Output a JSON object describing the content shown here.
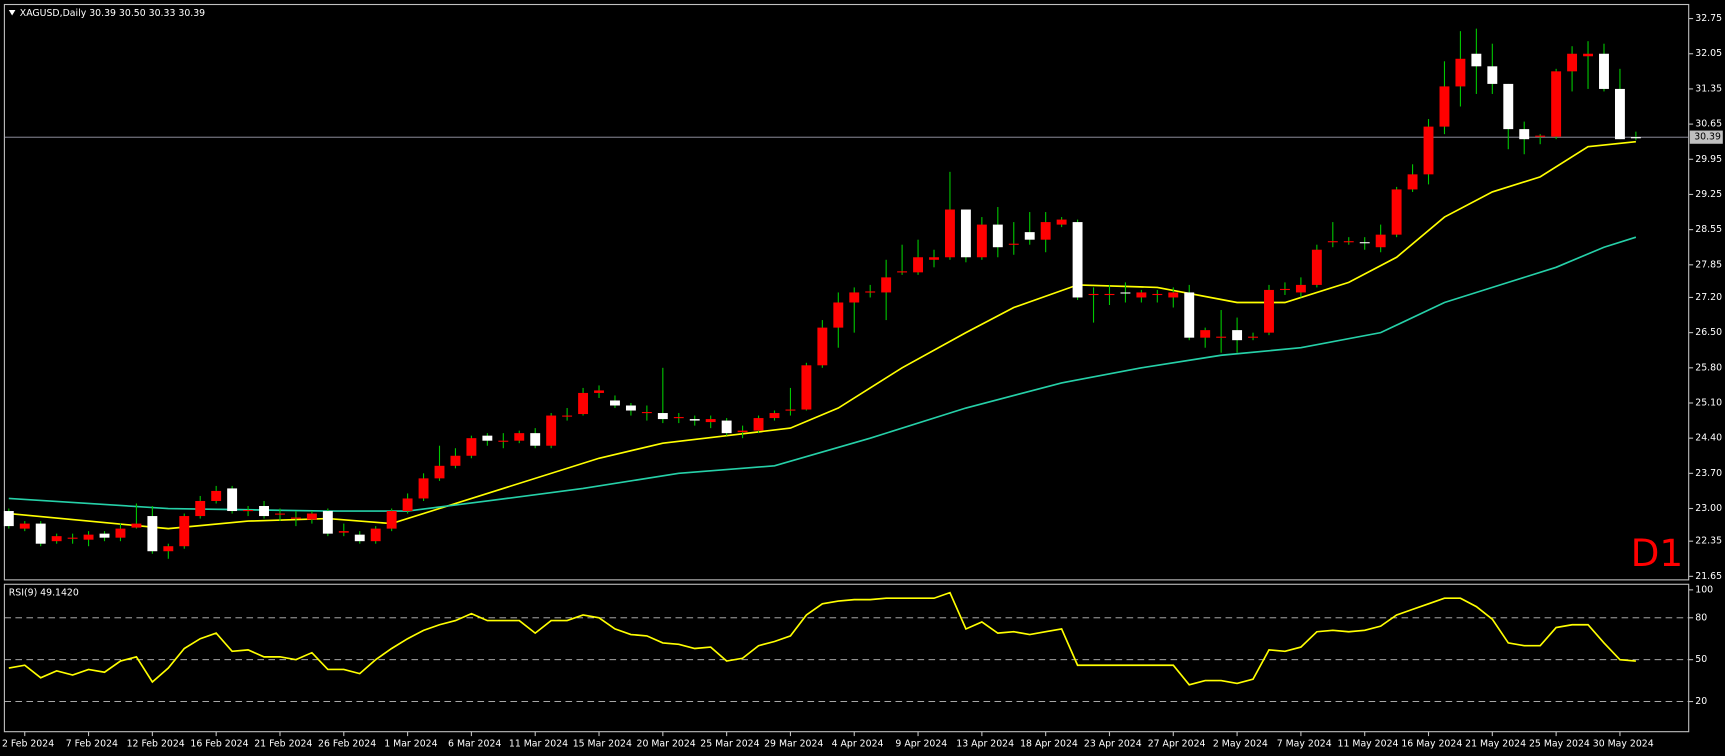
{
  "chart_data": [
    {
      "type": "candlestick",
      "title": "XAGUSD,Daily  30.39 30.50 30.33 30.39",
      "label": "D1",
      "categories": [
        null,
        "2 Feb 2024",
        null,
        null,
        null,
        "7 Feb 2024",
        null,
        null,
        null,
        "12 Feb 2024",
        null,
        null,
        null,
        "16 Feb 2024",
        null,
        null,
        null,
        "21 Feb 2024",
        null,
        null,
        null,
        "26 Feb 2024",
        null,
        null,
        null,
        "1 Mar 2024",
        null,
        null,
        null,
        "6 Mar 2024",
        null,
        null,
        null,
        "11 Mar 2024",
        null,
        null,
        null,
        "15 Mar 2024",
        null,
        null,
        null,
        "20 Mar 2024",
        null,
        null,
        null,
        "25 Mar 2024",
        null,
        null,
        null,
        "29 Mar 2024",
        null,
        null,
        null,
        "4 Apr 2024",
        null,
        null,
        null,
        "9 Apr 2024",
        null,
        null,
        null,
        "13 Apr 2024",
        null,
        null,
        null,
        "18 Apr 2024",
        null,
        null,
        null,
        "23 Apr 2024",
        null,
        null,
        null,
        "27 Apr 2024",
        null,
        null,
        null,
        "2 May 2024",
        null,
        null,
        null,
        "7 May 2024",
        null,
        null,
        null,
        "11 May 2024",
        null,
        null,
        null,
        "16 May 2024",
        null,
        null,
        null,
        "21 May 2024",
        null,
        null,
        null,
        "25 May 2024",
        null,
        null,
        null,
        "30 May 2024",
        null
      ],
      "open": [
        22.95,
        22.6,
        22.7,
        22.35,
        22.4,
        22.38,
        22.5,
        22.42,
        22.62,
        22.85,
        22.15,
        22.25,
        22.85,
        23.15,
        23.4,
        22.95,
        23.05,
        22.88,
        22.8,
        22.78,
        22.95,
        22.52,
        22.48,
        22.35,
        22.6,
        22.95,
        23.2,
        23.6,
        23.85,
        24.05,
        24.45,
        24.33,
        24.35,
        24.5,
        24.25,
        24.83,
        24.88,
        25.3,
        25.15,
        25.05,
        24.9,
        24.9,
        24.8,
        24.78,
        24.72,
        24.75,
        24.52,
        24.55,
        24.8,
        24.95,
        24.97,
        25.85,
        26.6,
        27.1,
        27.3,
        27.3,
        27.7,
        27.7,
        27.95,
        28.0,
        28.95,
        28.0,
        28.65,
        28.25,
        28.5,
        28.35,
        28.65,
        28.7,
        27.25,
        27.25,
        27.3,
        27.2,
        27.25,
        27.2,
        27.3,
        26.4,
        26.4,
        26.55,
        26.4,
        26.5,
        27.35,
        27.3,
        27.45,
        28.3,
        28.3,
        28.3,
        28.2,
        28.45,
        29.35,
        29.65,
        30.6,
        31.4,
        32.05,
        31.8,
        31.45,
        30.55,
        30.4,
        30.4,
        31.7,
        32.0,
        32.05,
        31.35,
        30.39
      ],
      "high": [
        23.0,
        22.75,
        22.75,
        22.5,
        22.5,
        22.55,
        22.55,
        22.7,
        23.1,
        23.05,
        22.3,
        22.9,
        23.25,
        23.45,
        23.45,
        23.05,
        23.15,
        23.0,
        22.95,
        22.95,
        23.0,
        22.7,
        22.55,
        22.65,
        23.0,
        23.3,
        23.7,
        24.25,
        24.2,
        24.45,
        24.5,
        24.5,
        24.55,
        24.6,
        24.9,
        25.0,
        25.4,
        25.45,
        25.25,
        25.1,
        25.05,
        25.8,
        24.9,
        24.85,
        24.85,
        24.8,
        24.65,
        24.85,
        24.95,
        25.4,
        25.9,
        26.75,
        27.3,
        27.4,
        27.45,
        27.95,
        28.25,
        28.35,
        28.15,
        29.7,
        28.95,
        28.8,
        29.0,
        28.7,
        28.9,
        28.9,
        28.8,
        28.75,
        27.4,
        27.45,
        27.5,
        27.35,
        27.35,
        27.4,
        27.45,
        26.6,
        26.95,
        26.8,
        26.5,
        27.45,
        27.5,
        27.6,
        28.25,
        28.7,
        28.4,
        28.4,
        28.65,
        29.4,
        29.85,
        30.75,
        31.9,
        32.5,
        32.55,
        32.25,
        31.45,
        30.7,
        30.45,
        31.75,
        32.2,
        32.3,
        32.25,
        31.75,
        30.5
      ],
      "low": [
        22.6,
        22.55,
        22.25,
        22.3,
        22.3,
        22.25,
        22.35,
        22.35,
        22.6,
        22.1,
        22.0,
        22.2,
        22.8,
        23.1,
        22.9,
        22.85,
        22.8,
        22.75,
        22.65,
        22.7,
        22.45,
        22.45,
        22.3,
        22.3,
        22.55,
        22.9,
        23.15,
        23.55,
        23.8,
        24.0,
        24.25,
        24.2,
        24.3,
        24.2,
        24.2,
        24.75,
        24.85,
        25.2,
        25.0,
        24.85,
        24.75,
        24.7,
        24.7,
        24.65,
        24.6,
        24.45,
        24.4,
        24.5,
        24.75,
        24.85,
        24.95,
        25.8,
        26.2,
        26.5,
        27.2,
        26.75,
        27.65,
        27.65,
        27.8,
        27.95,
        27.9,
        27.95,
        28.0,
        28.05,
        28.25,
        28.1,
        28.6,
        27.15,
        26.7,
        27.05,
        27.1,
        27.1,
        27.1,
        27.0,
        26.35,
        26.2,
        26.1,
        26.1,
        26.35,
        26.45,
        27.25,
        27.2,
        27.4,
        28.2,
        28.25,
        28.15,
        28.1,
        28.4,
        29.3,
        29.45,
        30.45,
        31.0,
        31.25,
        31.25,
        30.15,
        30.05,
        30.25,
        30.35,
        31.3,
        31.35,
        31.3,
        30.35,
        30.33
      ],
      "close": [
        22.65,
        22.7,
        22.3,
        22.45,
        22.42,
        22.48,
        22.42,
        22.6,
        22.7,
        22.15,
        22.25,
        22.85,
        23.15,
        23.35,
        22.95,
        22.97,
        22.85,
        22.9,
        22.82,
        22.9,
        22.5,
        22.55,
        22.35,
        22.6,
        22.95,
        23.2,
        23.6,
        23.85,
        24.05,
        24.4,
        24.35,
        24.35,
        24.5,
        24.25,
        24.85,
        24.85,
        25.3,
        25.35,
        25.05,
        24.95,
        24.92,
        24.78,
        24.82,
        24.75,
        24.78,
        24.5,
        24.55,
        24.8,
        24.9,
        24.97,
        25.85,
        26.6,
        27.1,
        27.3,
        27.32,
        27.6,
        27.72,
        28.0,
        28.0,
        28.95,
        28.0,
        28.65,
        28.2,
        28.27,
        28.35,
        28.7,
        28.75,
        27.2,
        27.27,
        27.27,
        27.28,
        27.3,
        27.27,
        27.3,
        26.4,
        26.55,
        26.42,
        26.35,
        26.42,
        27.35,
        27.37,
        27.45,
        28.15,
        28.32,
        28.32,
        28.28,
        28.45,
        29.35,
        29.65,
        30.6,
        31.4,
        31.95,
        31.8,
        31.45,
        30.55,
        30.35,
        30.42,
        31.7,
        32.05,
        32.05,
        31.35,
        30.35,
        30.39
      ],
      "up_color": "#ff0000",
      "down_color": "#ffffff",
      "wick_color": "#00c800",
      "lines": [
        {
          "color": "#ffff00",
          "x": [
            0,
            5,
            10,
            15,
            20,
            24,
            27,
            31,
            37,
            41,
            45,
            49,
            52,
            56,
            60,
            63,
            67,
            72,
            77,
            80,
            84,
            87,
            90,
            93,
            96,
            99,
            102
          ],
          "values": [
            22.9,
            22.75,
            22.6,
            22.75,
            22.8,
            22.7,
            23.0,
            23.4,
            24.0,
            24.3,
            24.45,
            24.6,
            25.0,
            25.8,
            26.5,
            27.0,
            27.45,
            27.4,
            27.1,
            27.1,
            27.5,
            28.0,
            28.8,
            29.3,
            29.6,
            30.2,
            30.3
          ]
        },
        {
          "color": "#26d0a8",
          "x": [
            0,
            10,
            20,
            25,
            30,
            36,
            42,
            48,
            54,
            60,
            66,
            71,
            76,
            81,
            86,
            90,
            94,
            97,
            100,
            102
          ],
          "values": [
            23.2,
            23.0,
            22.95,
            22.95,
            23.15,
            23.4,
            23.7,
            23.85,
            24.4,
            25.0,
            25.5,
            25.8,
            26.05,
            26.2,
            26.5,
            27.1,
            27.5,
            27.8,
            28.2,
            28.4
          ]
        }
      ],
      "price_line": 30.39,
      "ylim": [
        21.58,
        33.03
      ],
      "yticks": [
        {
          "value": 32.75,
          "label": "32.75"
        },
        {
          "value": 32.05,
          "label": "32.05"
        },
        {
          "value": 31.35,
          "label": "31.35"
        },
        {
          "value": 30.65,
          "label": "30.65"
        },
        {
          "value": 29.95,
          "label": "29.95"
        },
        {
          "value": 29.25,
          "label": "29.25"
        },
        {
          "value": 28.55,
          "label": "28.55"
        },
        {
          "value": 27.85,
          "label": "27.85"
        },
        {
          "value": 27.2,
          "label": "27.20"
        },
        {
          "value": 26.5,
          "label": "26.50"
        },
        {
          "value": 25.8,
          "label": "25.80"
        },
        {
          "value": 25.1,
          "label": "25.10"
        },
        {
          "value": 24.4,
          "label": "24.40"
        },
        {
          "value": 23.7,
          "label": "23.70"
        },
        {
          "value": 23.0,
          "label": "23.00"
        },
        {
          "value": 22.35,
          "label": "22.35"
        },
        {
          "value": 21.65,
          "label": "21.65"
        }
      ]
    },
    {
      "type": "line",
      "title": "RSI(9) 49.1420",
      "color": "#ffff00",
      "values": [
        44,
        46,
        37,
        42,
        39,
        43,
        41,
        49,
        52,
        34,
        44,
        58,
        65,
        69,
        56,
        57,
        52,
        52,
        50,
        55,
        43,
        43,
        40,
        50,
        58,
        65,
        71,
        75,
        78,
        83,
        78,
        78,
        78,
        69,
        78,
        78,
        82,
        80,
        72,
        68,
        67,
        62,
        61,
        58,
        59,
        49,
        51,
        60,
        63,
        67,
        82,
        90,
        92,
        93,
        93,
        94,
        94,
        94,
        94,
        98,
        72,
        77,
        69,
        70,
        68,
        70,
        72,
        46,
        46,
        46,
        46,
        46,
        46,
        46,
        32,
        35,
        35,
        33,
        36,
        57,
        56,
        59,
        70,
        71,
        70,
        71,
        74,
        82,
        86,
        90,
        94,
        94,
        88,
        79,
        62,
        60,
        60,
        73,
        75,
        75,
        62,
        50,
        49
      ],
      "ylim": [
        -1.6,
        104
      ],
      "yticks": [
        100,
        80,
        50,
        20
      ],
      "levels": [
        80,
        50,
        20
      ]
    }
  ]
}
